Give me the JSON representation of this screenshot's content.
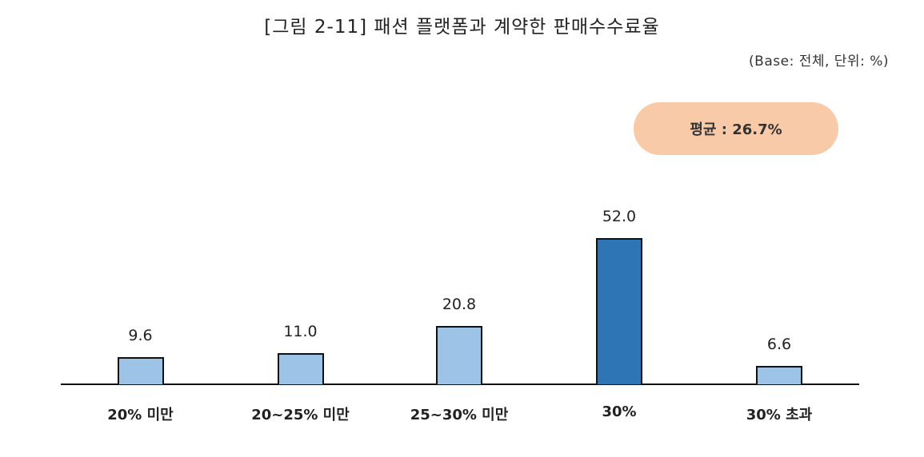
{
  "header": {
    "title": "[그림 2-11] 패션 플랫폼과 계약한 판매수수료율",
    "unit_note": "(Base: 전체, 단위: %)"
  },
  "average_badge": {
    "label": "평균 : 26.7%",
    "color": "#f9caa7"
  },
  "colors": {
    "light_bar": "#9dc3e6",
    "highlight_bar": "#2e75b6",
    "axis": "#111111"
  },
  "chart_data": {
    "type": "bar",
    "title": "[그림 2-11] 패션 플랫폼과 계약한 판매수수료율",
    "subtitle": "(Base: 전체, 단위: %)",
    "xlabel": "",
    "ylabel": "",
    "categories": [
      "20% 미만",
      "20~25% 미만",
      "25~30% 미만",
      "30%",
      "30% 초과"
    ],
    "values": [
      9.6,
      11.0,
      20.8,
      52.0,
      6.6
    ],
    "value_labels": [
      "9.6",
      "11.0",
      "20.8",
      "52.0",
      "6.6"
    ],
    "highlight_index": 3,
    "annotations": [
      "평균 : 26.7%"
    ],
    "grid": false,
    "legend": "none",
    "ylim": [
      0,
      60
    ]
  }
}
